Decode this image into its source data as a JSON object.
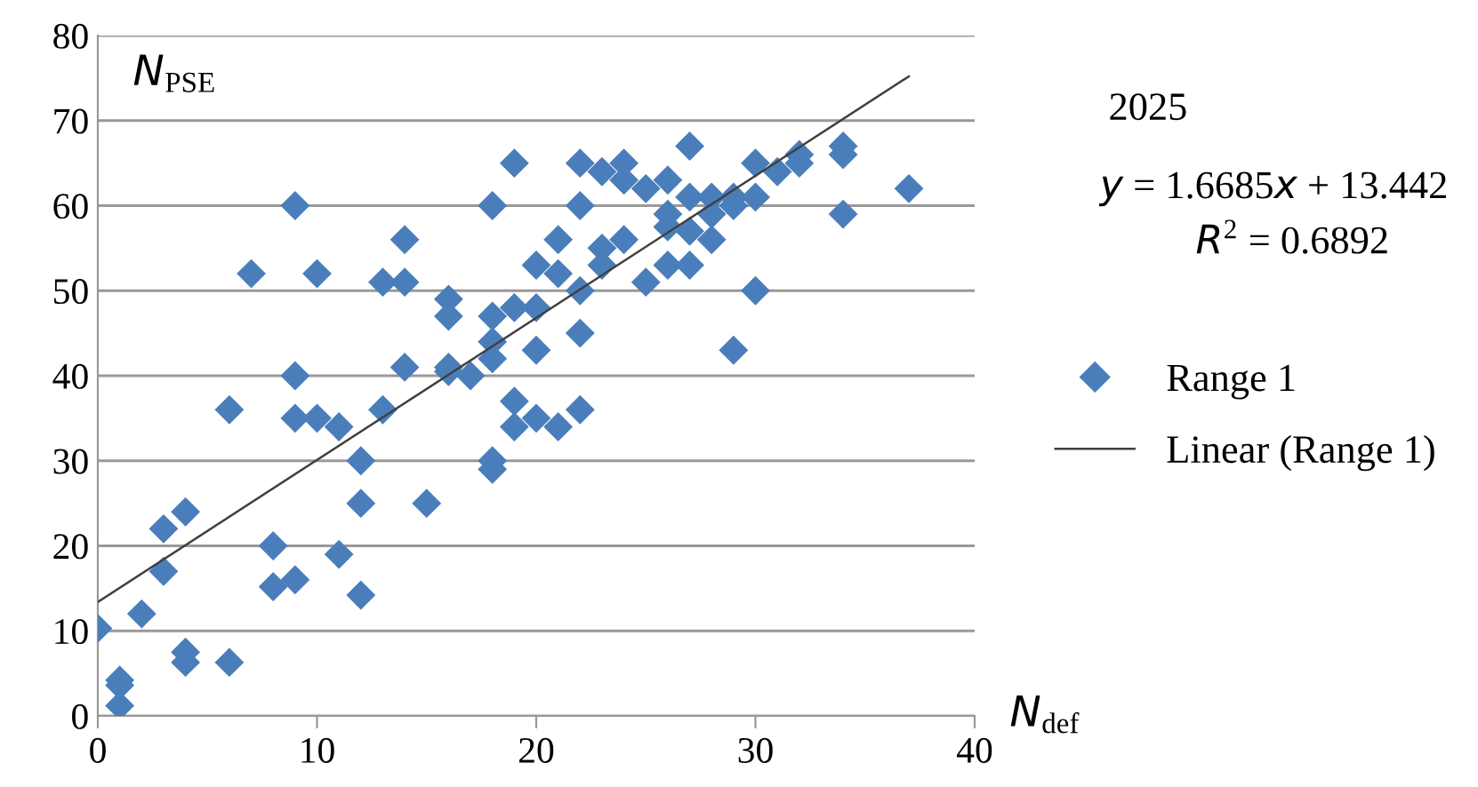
{
  "chart_data": {
    "type": "scatter",
    "ylabel": "N$_{PSE}$",
    "xlabel": "N$_{def}$",
    "annotations": [
      "2025",
      "y = 1.6685x + 13.442",
      "R$^{2}$ = 0.6892"
    ],
    "xlim": [
      0,
      40
    ],
    "ylim": [
      0,
      80
    ],
    "xticks": [
      0,
      10,
      20,
      30,
      40
    ],
    "yticks": [
      0,
      10,
      20,
      30,
      40,
      50,
      60,
      70,
      80
    ],
    "grid": "y",
    "legend": "right",
    "marker": "diamond",
    "series": [
      {
        "name": "Range 1",
        "color": "#4a7ebb",
        "x": [
          0,
          1,
          1,
          1,
          2,
          3,
          3,
          4,
          4,
          4,
          6,
          6,
          7,
          8,
          8,
          9,
          9,
          9,
          9,
          10,
          10,
          11,
          11,
          12,
          12,
          12,
          13,
          13,
          14,
          14,
          14,
          15,
          16,
          16,
          16,
          16,
          17,
          18,
          18,
          18,
          18,
          18,
          18,
          19,
          19,
          19,
          19,
          20,
          20,
          20,
          20,
          21,
          21,
          21,
          22,
          22,
          22,
          22,
          22,
          23,
          23,
          23,
          24,
          24,
          24,
          25,
          25,
          26,
          26,
          26,
          26,
          27,
          27,
          27,
          27,
          28,
          28,
          28,
          29,
          29,
          29,
          30,
          30,
          30,
          31,
          32,
          32,
          34,
          34,
          34,
          37
        ],
        "values": [
          10.3,
          4.2,
          3.6,
          1.2,
          12,
          22,
          17,
          24,
          7.5,
          6.3,
          36,
          6.3,
          52,
          20,
          15.2,
          60,
          40,
          35,
          16,
          52,
          35,
          34,
          19,
          30,
          25,
          14.2,
          51,
          36,
          56,
          51,
          41,
          25,
          49,
          47,
          41,
          40.5,
          40,
          60,
          47,
          44,
          42,
          30,
          29,
          65,
          48,
          37,
          34,
          53,
          48,
          43,
          35,
          56,
          52,
          34,
          65,
          60,
          50,
          45,
          36,
          64,
          55,
          53,
          65,
          63,
          56,
          62,
          51,
          63,
          59,
          57.5,
          53,
          67,
          61,
          57,
          53,
          61,
          56,
          59,
          61,
          60,
          43,
          65,
          61,
          50,
          64,
          66,
          65,
          67,
          66,
          59,
          62
        ]
      },
      {
        "name": "Linear (Range 1)",
        "type": "line",
        "color": "#404040",
        "marker": "none",
        "line_style": "solid",
        "x": [
          0,
          37
        ],
        "values": [
          13.4,
          75.2
        ]
      }
    ]
  }
}
